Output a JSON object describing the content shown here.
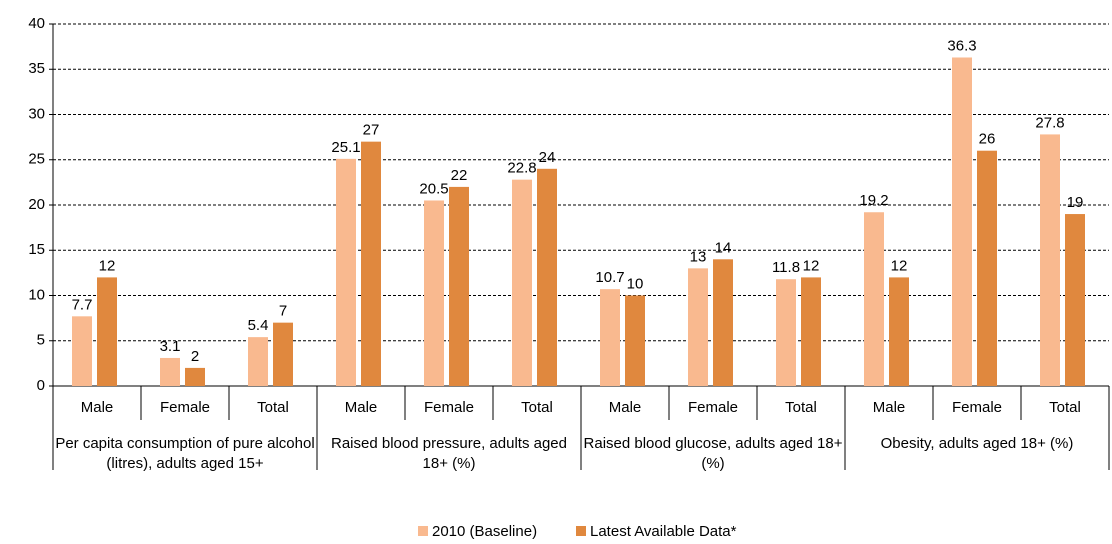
{
  "chart_data": {
    "type": "bar",
    "groups": [
      "Per capita consumption of pure alcohol (litres), adults aged 15+",
      "Raised blood pressure, adults aged 18+ (%)",
      "Raised blood glucose, adults aged 18+ (%)",
      "Obesity, adults aged 18+ (%)"
    ],
    "categories": [
      "Male",
      "Female",
      "Total",
      "Male",
      "Female",
      "Total",
      "Male",
      "Female",
      "Total",
      "Male",
      "Female",
      "Total"
    ],
    "series": [
      {
        "name": "2010 (Baseline)",
        "color": "#f9b98f",
        "values": [
          7.7,
          3.1,
          5.4,
          25.1,
          20.5,
          22.8,
          10.7,
          13,
          11.8,
          19.2,
          36.3,
          27.8
        ]
      },
      {
        "name": "Latest Available Data*",
        "color": "#e0883e",
        "values": [
          12,
          2,
          7,
          27,
          22,
          24,
          10,
          14,
          12,
          12,
          26,
          19
        ]
      }
    ],
    "ylim": [
      0,
      40
    ],
    "yticks": [
      0,
      5,
      10,
      15,
      20,
      25,
      30,
      35,
      40
    ],
    "grid": true,
    "legend": "bottom"
  }
}
